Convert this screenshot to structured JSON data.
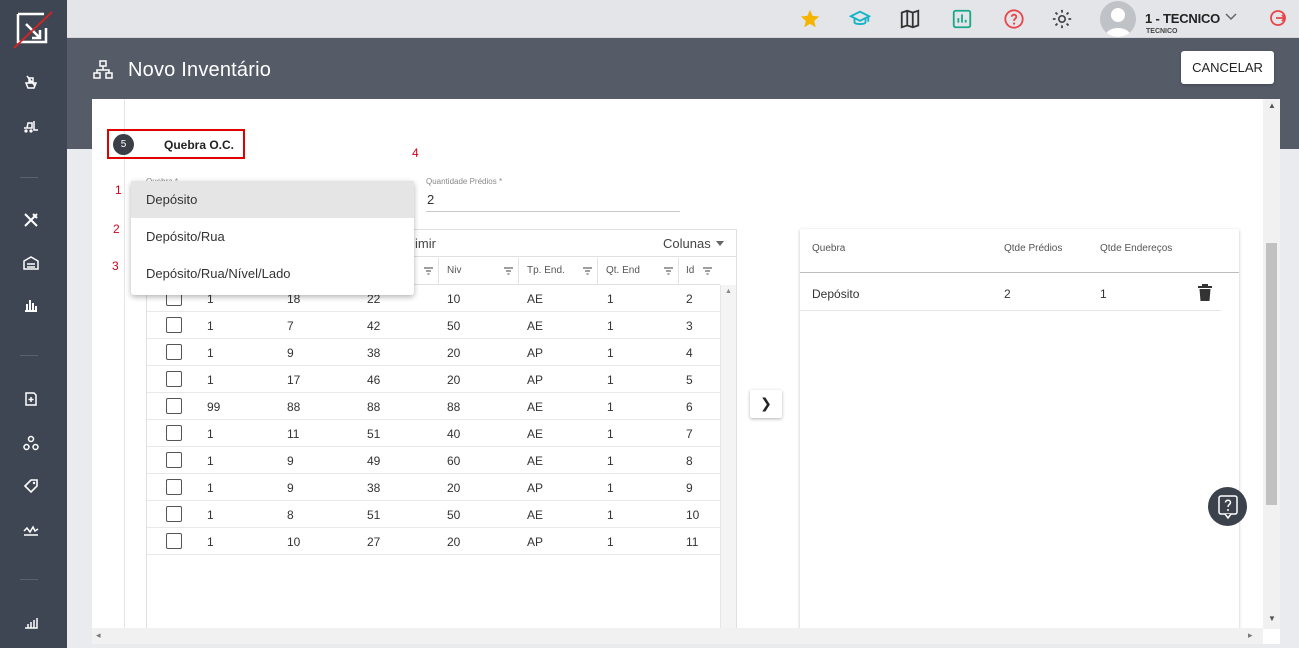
{
  "topbar": {
    "user_name": "1 - TECNICO",
    "user_role": "TECNICO"
  },
  "header": {
    "title": "Novo Inventário",
    "cancel_label": "CANCELAR"
  },
  "step": {
    "number": "5",
    "label": "Quebra O.C."
  },
  "annotations": [
    "1",
    "2",
    "3",
    "4"
  ],
  "form": {
    "quebra_label": "Quebra *",
    "quantidade_label": "Quantidade Prédios *",
    "quantidade_value": "2"
  },
  "dropdown": {
    "options": [
      "Depósito",
      "Depósito/Rua",
      "Depósito/Rua/Nível/Lado"
    ],
    "selected": "Depósito"
  },
  "left_table": {
    "toolbar_print": "imir",
    "toolbar_columns": "Colunas",
    "headers": [
      "Niv",
      "Tp. End.",
      "Qt. End",
      "Id"
    ],
    "rows": [
      [
        "1",
        "18",
        "22",
        "10",
        "AE",
        "1",
        "2"
      ],
      [
        "1",
        "7",
        "42",
        "50",
        "AE",
        "1",
        "3"
      ],
      [
        "1",
        "9",
        "38",
        "20",
        "AP",
        "1",
        "4"
      ],
      [
        "1",
        "17",
        "46",
        "20",
        "AP",
        "1",
        "5"
      ],
      [
        "99",
        "88",
        "88",
        "88",
        "AE",
        "1",
        "6"
      ],
      [
        "1",
        "11",
        "51",
        "40",
        "AE",
        "1",
        "7"
      ],
      [
        "1",
        "9",
        "49",
        "60",
        "AE",
        "1",
        "8"
      ],
      [
        "1",
        "9",
        "38",
        "20",
        "AP",
        "1",
        "9"
      ],
      [
        "1",
        "8",
        "51",
        "50",
        "AE",
        "1",
        "10"
      ],
      [
        "1",
        "10",
        "27",
        "20",
        "AP",
        "1",
        "11"
      ]
    ]
  },
  "right_table": {
    "headers": [
      "Quebra",
      "Qtde Prédios",
      "Qtde Endereços"
    ],
    "rows": [
      [
        "Depósito",
        "2",
        "1"
      ]
    ]
  },
  "colors": {
    "sidebar": "#3f4653",
    "header_band": "#555c68",
    "highlight_border": "#e10000",
    "star": "#f5b400",
    "teal": "#14b3c7",
    "red_icon": "#e8454a"
  }
}
